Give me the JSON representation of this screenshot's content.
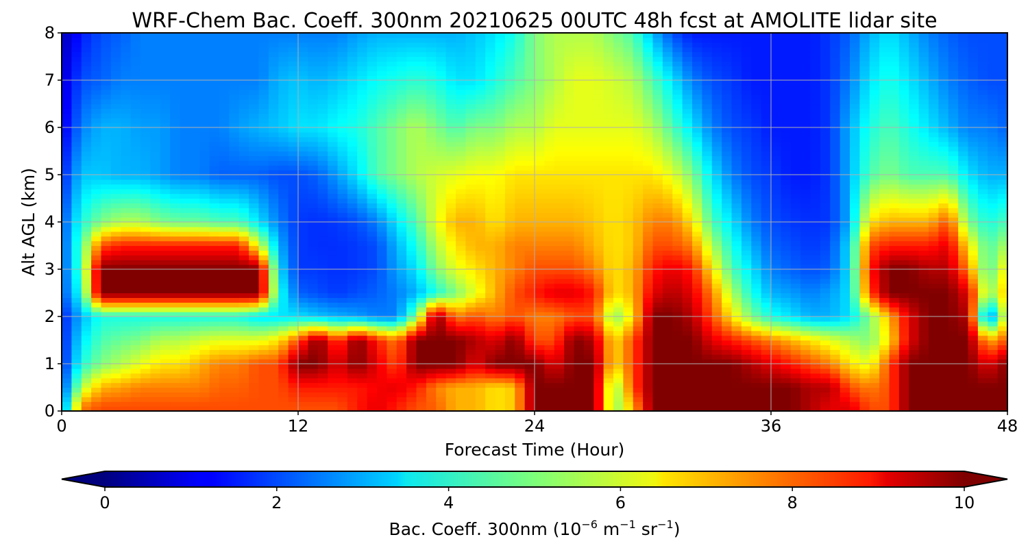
{
  "chart_data": {
    "type": "heatmap",
    "title": "WRF-Chem Bac. Coeff. 300nm  20210625 00UTC 48h fcst at AMOLITE lidar site",
    "xlabel": "Forecast Time (Hour)",
    "ylabel": "Alt AGL (km)",
    "xlim": [
      0,
      48
    ],
    "ylim": [
      0,
      8
    ],
    "x_ticks": [
      0,
      12,
      24,
      36,
      48
    ],
    "y_ticks": [
      0,
      1,
      2,
      3,
      4,
      5,
      6,
      7,
      8
    ],
    "grid": true,
    "colorbar": {
      "orientation": "horizontal",
      "label": "Bac. Coeff. 300nm  (10",
      "label_parts": [
        "Bac. Coeff. 300nm  (10",
        "−6",
        " m",
        "−1",
        " sr",
        "−1",
        ")"
      ],
      "ticks": [
        0,
        2,
        4,
        6,
        8,
        10
      ],
      "range": [
        0,
        10
      ],
      "extend": "both",
      "colormap": "jet"
    },
    "x": [
      0,
      1,
      2,
      3,
      4,
      5,
      6,
      7,
      8,
      9,
      10,
      11,
      12,
      13,
      14,
      15,
      16,
      17,
      18,
      19,
      20,
      21,
      22,
      23,
      24,
      25,
      26,
      27,
      28,
      29,
      30,
      31,
      32,
      33,
      34,
      35,
      36,
      37,
      38,
      39,
      40,
      41,
      42,
      43,
      44,
      45,
      46,
      47,
      48
    ],
    "y": [
      0.1,
      0.5,
      1.0,
      1.5,
      2.0,
      2.5,
      3.0,
      3.5,
      4.0,
      5.0,
      6.0,
      7.0,
      8.0
    ],
    "values": [
      [
        2.2,
        7.5,
        8.0,
        8.0,
        8.0,
        8.0,
        8.0,
        8.0,
        8.0,
        8.0,
        8.0,
        8.0,
        8.0,
        8.0,
        8.0,
        8.5,
        9.0,
        8.5,
        8.0,
        7.8,
        7.0,
        7.0,
        6.5,
        6.8,
        10.0,
        10.0,
        10.0,
        10.0,
        5.0,
        7.0,
        10.0,
        10.0,
        10.0,
        10.0,
        10.0,
        10.0,
        10.0,
        10.0,
        9.5,
        9.0,
        9.0,
        8.0,
        8.0,
        10.0,
        10.0,
        10.0,
        10.0,
        10.0,
        10.0
      ],
      [
        1.8,
        5.5,
        7.0,
        7.2,
        7.5,
        7.5,
        7.5,
        7.5,
        7.8,
        7.8,
        8.0,
        8.0,
        8.5,
        8.5,
        8.5,
        8.5,
        8.8,
        9.0,
        8.5,
        7.5,
        7.0,
        7.0,
        6.5,
        6.8,
        10.0,
        10.0,
        10.0,
        10.0,
        5.0,
        8.0,
        10.0,
        10.0,
        10.0,
        10.0,
        10.0,
        10.0,
        10.0,
        10.0,
        9.5,
        9.5,
        8.0,
        7.5,
        8.0,
        10.0,
        10.0,
        10.0,
        10.0,
        10.0,
        10.0
      ],
      [
        1.5,
        4.0,
        5.0,
        5.5,
        6.0,
        6.5,
        6.5,
        7.0,
        7.5,
        7.5,
        8.0,
        8.0,
        10.0,
        10.0,
        9.0,
        10.0,
        9.0,
        8.0,
        10.0,
        10.0,
        10.0,
        9.0,
        10.0,
        10.0,
        10.0,
        9.0,
        10.0,
        10.0,
        6.5,
        8.0,
        10.0,
        10.0,
        10.0,
        10.0,
        10.0,
        9.5,
        9.0,
        8.5,
        8.0,
        7.5,
        6.5,
        6.0,
        8.0,
        10.0,
        10.0,
        10.0,
        10.0,
        9.0,
        10.0
      ],
      [
        1.5,
        3.5,
        4.5,
        4.8,
        5.0,
        5.5,
        5.5,
        5.8,
        6.0,
        6.0,
        6.0,
        6.5,
        8.0,
        10.0,
        8.0,
        10.0,
        8.5,
        7.5,
        10.0,
        10.0,
        10.0,
        9.5,
        9.0,
        10.0,
        8.0,
        8.0,
        10.0,
        9.5,
        6.5,
        8.0,
        10.0,
        10.0,
        10.0,
        9.0,
        8.5,
        8.0,
        7.5,
        7.0,
        6.5,
        6.0,
        5.5,
        5.0,
        6.5,
        9.0,
        10.0,
        10.0,
        10.0,
        7.0,
        8.0
      ],
      [
        1.5,
        3.0,
        4.0,
        4.0,
        4.0,
        4.0,
        4.0,
        4.0,
        4.0,
        4.0,
        3.5,
        3.5,
        3.5,
        3.2,
        3.0,
        2.8,
        2.5,
        2.5,
        5.0,
        10.0,
        7.5,
        8.0,
        7.5,
        8.0,
        7.5,
        7.5,
        8.0,
        8.0,
        5.0,
        6.5,
        10.0,
        10.0,
        9.5,
        8.0,
        6.5,
        5.0,
        4.0,
        3.5,
        3.0,
        3.0,
        3.5,
        5.0,
        7.0,
        9.0,
        10.0,
        10.0,
        9.5,
        2.0,
        6.5
      ],
      [
        2.0,
        4.0,
        10.0,
        10.0,
        10.0,
        10.0,
        10.0,
        10.0,
        10.0,
        10.0,
        10.0,
        4.0,
        2.2,
        2.0,
        1.8,
        2.0,
        2.2,
        2.5,
        3.0,
        4.0,
        5.0,
        6.0,
        7.0,
        8.0,
        8.5,
        9.0,
        9.0,
        8.5,
        6.5,
        7.0,
        9.0,
        9.5,
        9.0,
        7.5,
        5.5,
        4.0,
        3.0,
        2.8,
        2.5,
        2.8,
        3.5,
        8.0,
        10.0,
        10.0,
        10.0,
        10.0,
        9.0,
        5.0,
        7.0
      ],
      [
        2.0,
        4.5,
        10.0,
        10.0,
        10.0,
        10.0,
        10.0,
        10.0,
        10.0,
        10.0,
        10.0,
        3.5,
        1.8,
        1.8,
        1.7,
        1.8,
        2.0,
        2.8,
        3.5,
        5.0,
        6.0,
        6.5,
        7.0,
        7.5,
        8.0,
        8.0,
        8.0,
        7.5,
        6.5,
        7.0,
        8.5,
        9.0,
        8.5,
        6.5,
        4.5,
        3.5,
        2.5,
        2.2,
        2.0,
        2.2,
        3.5,
        8.5,
        10.0,
        10.0,
        9.5,
        9.5,
        7.5,
        4.5,
        6.5
      ],
      [
        2.0,
        4.5,
        8.0,
        8.5,
        8.5,
        8.5,
        8.5,
        8.5,
        8.5,
        8.5,
        6.0,
        3.0,
        1.8,
        1.7,
        1.7,
        1.8,
        2.0,
        3.0,
        4.0,
        5.5,
        6.5,
        7.0,
        7.0,
        7.5,
        7.5,
        7.5,
        7.5,
        7.0,
        6.5,
        6.8,
        8.0,
        8.0,
        7.5,
        5.5,
        4.0,
        3.0,
        2.2,
        2.0,
        1.8,
        2.0,
        3.5,
        8.0,
        8.5,
        8.5,
        8.5,
        9.0,
        6.5,
        4.5,
        5.5
      ],
      [
        2.0,
        4.0,
        5.0,
        5.5,
        5.5,
        5.0,
        4.8,
        4.8,
        4.5,
        4.5,
        3.5,
        2.5,
        1.8,
        1.7,
        1.8,
        2.0,
        2.5,
        3.5,
        4.5,
        6.0,
        7.0,
        7.0,
        6.5,
        7.0,
        7.0,
        7.0,
        7.0,
        6.8,
        6.5,
        6.8,
        7.5,
        7.5,
        6.5,
        4.5,
        3.5,
        2.5,
        2.0,
        1.8,
        1.7,
        1.8,
        3.0,
        6.5,
        7.0,
        7.0,
        7.0,
        8.0,
        5.0,
        4.0,
        4.5
      ],
      [
        1.5,
        3.2,
        3.2,
        3.0,
        3.0,
        2.8,
        2.5,
        2.5,
        2.2,
        2.2,
        2.2,
        2.0,
        2.0,
        2.2,
        2.8,
        3.5,
        4.5,
        5.0,
        5.5,
        5.8,
        6.0,
        6.2,
        6.2,
        6.5,
        6.5,
        6.5,
        6.5,
        6.5,
        6.5,
        6.5,
        6.5,
        6.0,
        5.0,
        3.5,
        2.5,
        2.0,
        1.8,
        1.5,
        1.5,
        1.8,
        3.0,
        4.5,
        5.0,
        4.5,
        4.5,
        4.5,
        3.5,
        3.0,
        3.0
      ],
      [
        1.0,
        2.5,
        3.0,
        3.0,
        2.8,
        2.8,
        2.5,
        2.5,
        2.5,
        2.8,
        3.0,
        3.2,
        3.5,
        3.5,
        3.8,
        4.0,
        4.5,
        5.0,
        5.5,
        5.0,
        4.5,
        5.0,
        5.0,
        5.5,
        5.5,
        6.0,
        6.0,
        6.0,
        6.0,
        6.0,
        5.5,
        4.5,
        3.5,
        2.5,
        2.0,
        1.8,
        1.5,
        1.5,
        1.5,
        1.8,
        3.0,
        4.0,
        4.5,
        4.0,
        3.5,
        3.0,
        2.5,
        2.5,
        2.2
      ],
      [
        0.8,
        2.0,
        2.2,
        2.5,
        2.5,
        2.5,
        2.5,
        2.5,
        2.5,
        2.5,
        2.5,
        3.0,
        3.2,
        3.0,
        3.2,
        3.5,
        3.8,
        4.0,
        4.2,
        4.0,
        3.5,
        3.5,
        4.0,
        4.5,
        5.0,
        5.5,
        6.0,
        6.0,
        5.8,
        5.5,
        4.5,
        3.5,
        2.5,
        2.0,
        1.8,
        1.5,
        1.5,
        1.5,
        1.5,
        1.8,
        2.5,
        3.5,
        4.0,
        3.5,
        3.0,
        2.5,
        2.2,
        2.0,
        2.0
      ],
      [
        0.5,
        1.5,
        2.0,
        2.2,
        2.5,
        2.5,
        2.5,
        2.5,
        2.5,
        2.5,
        2.5,
        2.5,
        2.5,
        2.5,
        2.5,
        2.8,
        3.0,
        3.0,
        3.0,
        3.0,
        3.0,
        3.2,
        3.5,
        4.0,
        5.0,
        5.5,
        5.5,
        5.5,
        5.0,
        4.5,
        3.0,
        2.0,
        1.5,
        1.5,
        1.5,
        1.5,
        1.5,
        1.5,
        1.5,
        1.8,
        2.2,
        3.0,
        3.5,
        3.0,
        2.5,
        2.2,
        2.0,
        2.0,
        2.0
      ]
    ]
  }
}
